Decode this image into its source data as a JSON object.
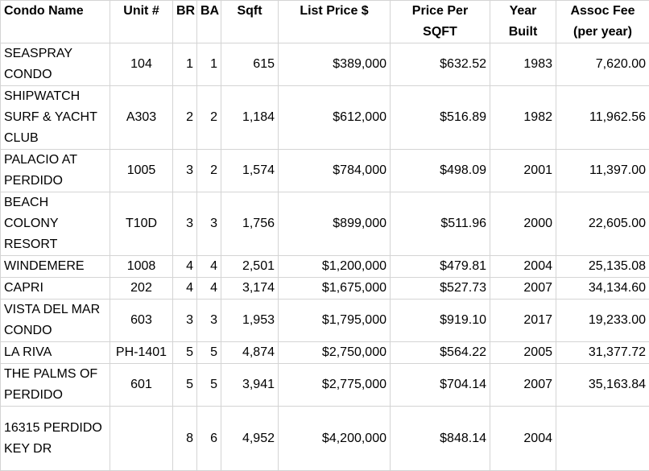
{
  "table": {
    "header": [
      "Condo Name",
      "Unit #",
      "BR",
      "BA",
      "Sqft",
      "List Price $",
      "Price Per\nSQFT",
      "Year\nBuilt",
      "Assoc Fee\n(per year)"
    ],
    "rows": [
      [
        "SEASPRAY\nCONDO",
        "104",
        "1",
        "1",
        "615",
        "$389,000",
        "$632.52",
        "1983",
        "7,620.00"
      ],
      [
        "SHIPWATCH\nSURF & YACHT\nCLUB",
        "A303",
        "2",
        "2",
        "1,184",
        "$612,000",
        "$516.89",
        "1982",
        "11,962.56"
      ],
      [
        "PALACIO AT\nPERDIDO",
        "1005",
        "3",
        "2",
        "1,574",
        "$784,000",
        "$498.09",
        "2001",
        "11,397.00"
      ],
      [
        "BEACH\nCOLONY\nRESORT",
        "T10D",
        "3",
        "3",
        "1,756",
        "$899,000",
        "$511.96",
        "2000",
        "22,605.00"
      ],
      [
        "WINDEMERE",
        "1008",
        "4",
        "4",
        "2,501",
        "$1,200,000",
        "$479.81",
        "2004",
        "25,135.08"
      ],
      [
        "CAPRI",
        "202",
        "4",
        "4",
        "3,174",
        "$1,675,000",
        "$527.73",
        "2007",
        "34,134.60"
      ],
      [
        "VISTA DEL MAR\nCONDO",
        "603",
        "3",
        "3",
        "1,953",
        "$1,795,000",
        "$919.10",
        "2017",
        "19,233.00"
      ],
      [
        "LA RIVA",
        "PH-1401",
        "5",
        "5",
        "4,874",
        "$2,750,000",
        "$564.22",
        "2005",
        "31,377.72"
      ],
      [
        "THE PALMS OF\nPERDIDO",
        "601",
        "5",
        "5",
        "3,941",
        "$2,775,000",
        "$704.14",
        "2007",
        "35,163.84"
      ],
      [
        "16315 PERDIDO\nKEY DR",
        null,
        "8",
        "6",
        "4,952",
        "$4,200,000",
        "$848.14",
        "2004",
        null
      ]
    ]
  }
}
